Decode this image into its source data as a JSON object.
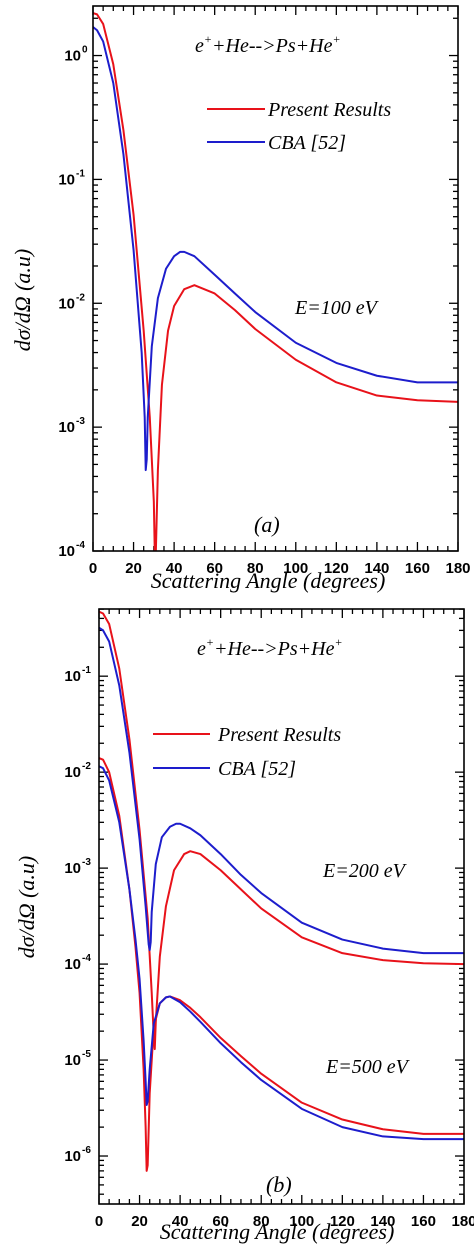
{
  "chart_data": [
    {
      "type": "line",
      "panel_label": "(a)",
      "reaction": {
        "a": "e",
        "a_sup": "+",
        "b": "+He-->Ps+He",
        "b_sup": "+"
      },
      "xlabel": "Scattering Angle (degrees)",
      "ylabel": "dσ/dΩ (a.u)",
      "xlim": [
        0,
        180
      ],
      "ylim_log10": [
        -4,
        0.4
      ],
      "y_scale": "log",
      "x_ticks": [
        0,
        20,
        40,
        60,
        80,
        100,
        120,
        140,
        160,
        180
      ],
      "y_tick_exponents": [
        0,
        -1,
        -2,
        -3,
        -4
      ],
      "y_tick_labels": [
        "10",
        "10",
        "10",
        "10",
        "10"
      ],
      "y_tick_sups": [
        "0",
        "-1",
        "-2",
        "-3",
        "-4"
      ],
      "legend_position": "top-right",
      "annotations": [
        "E=100 eV"
      ],
      "series": [
        {
          "name": "Present Results",
          "color": "#e8121a",
          "x": [
            0,
            2,
            5,
            10,
            15,
            20,
            25,
            28,
            30,
            30.5,
            31,
            32,
            34,
            37,
            40,
            45,
            50,
            60,
            70,
            80,
            100,
            120,
            140,
            160,
            180
          ],
          "y": [
            2.2,
            2.15,
            1.8,
            0.85,
            0.25,
            0.052,
            0.006,
            0.0012,
            0.00025,
            9e-05,
            0.0001,
            0.00045,
            0.0022,
            0.006,
            0.0095,
            0.013,
            0.014,
            0.012,
            0.0088,
            0.0062,
            0.0035,
            0.0023,
            0.0018,
            0.00165,
            0.0016
          ]
        },
        {
          "name": "CBA [52]",
          "color": "#1d1dcc",
          "x": [
            0,
            2,
            5,
            10,
            15,
            20,
            24,
            25.5,
            26,
            26.5,
            27,
            29,
            32,
            36,
            40,
            43,
            45,
            50,
            60,
            70,
            80,
            100,
            120,
            140,
            160,
            180
          ],
          "y": [
            1.7,
            1.6,
            1.3,
            0.6,
            0.16,
            0.027,
            0.004,
            0.0012,
            0.00045,
            0.00055,
            0.0012,
            0.0045,
            0.011,
            0.019,
            0.024,
            0.026,
            0.026,
            0.024,
            0.017,
            0.012,
            0.0085,
            0.0048,
            0.0033,
            0.0026,
            0.0023,
            0.0023
          ]
        }
      ]
    },
    {
      "type": "line",
      "panel_label": "(b)",
      "reaction": {
        "a": "e",
        "a_sup": "+",
        "b": "+He-->Ps+He",
        "b_sup": "+"
      },
      "xlabel": "Scattering Angle (degrees)",
      "ylabel": "dσ/dΩ (a.u)",
      "xlim": [
        0,
        180
      ],
      "ylim_log10": [
        -6.5,
        -0.3
      ],
      "y_scale": "log",
      "x_ticks": [
        0,
        20,
        40,
        60,
        80,
        100,
        120,
        140,
        160,
        180
      ],
      "y_tick_exponents": [
        -1,
        -2,
        -3,
        -4,
        -5,
        -6
      ],
      "y_tick_labels": [
        "10",
        "10",
        "10",
        "10",
        "10",
        "10"
      ],
      "y_tick_sups": [
        "-1",
        "-2",
        "-3",
        "-4",
        "-5",
        "-6"
      ],
      "legend_position": "top-right",
      "annotations": [
        "E=200 eV",
        "E=500 eV"
      ],
      "series": [
        {
          "name": "Present Results",
          "color": "#e8121a",
          "x": [
            0,
            2,
            5,
            10,
            15,
            20,
            24,
            26,
            27,
            27.5,
            28,
            30,
            33,
            37,
            42,
            45,
            50,
            60,
            70,
            80,
            100,
            120,
            140,
            160,
            180
          ],
          "y": [
            0.47,
            0.45,
            0.35,
            0.12,
            0.022,
            0.0025,
            0.0003,
            5e-05,
            1.8e-05,
            1.3e-05,
            2.5e-05,
            0.00012,
            0.0004,
            0.00095,
            0.0014,
            0.0015,
            0.0014,
            0.00095,
            0.0006,
            0.00038,
            0.00019,
            0.00013,
            0.00011,
            0.000102,
            0.0001
          ]
        },
        {
          "name": "CBA [52]",
          "color": "#1d1dcc",
          "x": [
            0,
            2,
            5,
            10,
            15,
            20,
            23,
            24.5,
            25,
            25.5,
            26,
            28,
            31,
            35,
            38,
            40,
            45,
            50,
            60,
            70,
            80,
            100,
            120,
            140,
            160,
            180
          ],
          "y": [
            0.32,
            0.3,
            0.23,
            0.08,
            0.016,
            0.002,
            0.0004,
            0.00016,
            0.00014,
            0.00017,
            0.00035,
            0.0011,
            0.0021,
            0.0027,
            0.0029,
            0.0029,
            0.0026,
            0.0022,
            0.0014,
            0.00085,
            0.00055,
            0.00027,
            0.00018,
            0.000145,
            0.00013,
            0.00013
          ]
        },
        {
          "name": "Present Results (E=500 eV)",
          "color": "#e8121a",
          "x": [
            0,
            2,
            5,
            10,
            15,
            18,
            20,
            22,
            23,
            23.5,
            24,
            25,
            27,
            30,
            33,
            35,
            40,
            45,
            50,
            60,
            70,
            80,
            100,
            120,
            140,
            160,
            180
          ],
          "y": [
            0.014,
            0.0135,
            0.01,
            0.0035,
            0.0006,
            0.00015,
            5e-05,
            8e-06,
            2e-06,
            7e-07,
            8e-07,
            4.5e-06,
            2.2e-05,
            3.9e-05,
            4.5e-05,
            4.6e-05,
            4.2e-05,
            3.5e-05,
            2.8e-05,
            1.7e-05,
            1.1e-05,
            7.2e-06,
            3.6e-06,
            2.4e-06,
            1.9e-06,
            1.7e-06,
            1.7e-06
          ]
        },
        {
          "name": "CBA [52] (E=500 eV)",
          "color": "#1d1dcc",
          "x": [
            0,
            2,
            5,
            10,
            15,
            18,
            20,
            22,
            23,
            23.5,
            24,
            25,
            27,
            30,
            33,
            35,
            40,
            45,
            50,
            60,
            70,
            80,
            100,
            120,
            140,
            160,
            180
          ],
          "y": [
            0.0115,
            0.011,
            0.0082,
            0.003,
            0.0006,
            0.00018,
            7e-05,
            1.6e-05,
            6e-06,
            3.4e-06,
            3.7e-06,
            8e-06,
            2.4e-05,
            3.9e-05,
            4.5e-05,
            4.6e-05,
            4e-05,
            3.2e-05,
            2.5e-05,
            1.5e-05,
            9.5e-06,
            6.2e-06,
            3.1e-06,
            2e-06,
            1.6e-06,
            1.5e-06,
            1.5e-06
          ]
        }
      ]
    }
  ]
}
